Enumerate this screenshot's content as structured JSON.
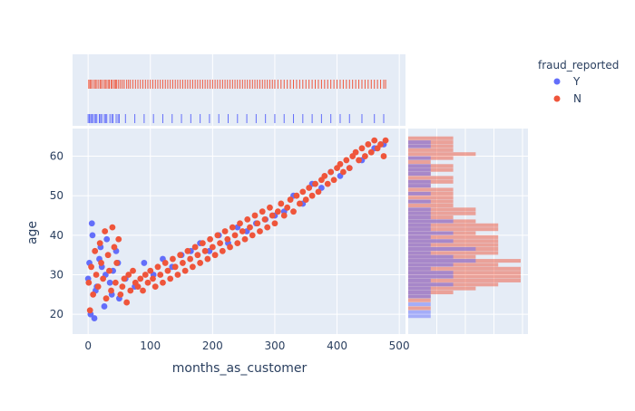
{
  "chart_data": {
    "type": "scatter",
    "title": "",
    "xlabel": "months_as_customer",
    "ylabel": "age",
    "xlim": [
      -25,
      510
    ],
    "ylim": [
      15,
      67
    ],
    "x_ticks": [
      0,
      100,
      200,
      300,
      400,
      500
    ],
    "y_ticks": [
      20,
      30,
      40,
      50,
      60
    ],
    "grid": true,
    "marginal_x": "rug",
    "marginal_y": "histogram",
    "legend": {
      "title": "fraud_reported",
      "position": "top-right",
      "entries": [
        {
          "name": "Y",
          "color": "#636efa"
        },
        {
          "name": "N",
          "color": "#ef553b"
        }
      ]
    },
    "series": [
      {
        "name": "Y",
        "color": "#636efa",
        "x": [
          0,
          2,
          4,
          7,
          10,
          14,
          18,
          22,
          26,
          30,
          35,
          40,
          45,
          50,
          6,
          12,
          20,
          28,
          38,
          48,
          60,
          75,
          90,
          105,
          120,
          135,
          150,
          165,
          180,
          195,
          210,
          225,
          240,
          255,
          270,
          285,
          300,
          315,
          330,
          345,
          360,
          375,
          390,
          405,
          420,
          440,
          460,
          475
        ],
        "y": [
          29,
          33,
          20,
          40,
          19,
          27,
          34,
          32,
          22,
          39,
          28,
          31,
          36,
          24,
          43,
          26,
          37,
          30,
          25,
          33,
          29,
          27,
          33,
          30,
          34,
          32,
          35,
          36,
          38,
          36,
          40,
          38,
          42,
          41,
          43,
          44,
          45,
          46,
          50,
          48,
          53,
          52,
          56,
          55,
          57,
          59,
          62,
          63
        ]
      },
      {
        "name": "N",
        "color": "#ef553b",
        "x": [
          1,
          3,
          5,
          8,
          11,
          13,
          16,
          19,
          21,
          24,
          27,
          29,
          32,
          34,
          37,
          39,
          42,
          44,
          46,
          49,
          52,
          55,
          58,
          62,
          65,
          68,
          72,
          76,
          80,
          84,
          88,
          92,
          96,
          100,
          104,
          108,
          112,
          116,
          120,
          124,
          128,
          132,
          136,
          140,
          144,
          148,
          152,
          156,
          160,
          164,
          168,
          172,
          176,
          180,
          184,
          188,
          192,
          196,
          200,
          204,
          208,
          212,
          216,
          220,
          224,
          228,
          232,
          236,
          240,
          244,
          248,
          252,
          256,
          260,
          264,
          268,
          272,
          276,
          280,
          284,
          288,
          292,
          296,
          300,
          305,
          310,
          315,
          320,
          325,
          330,
          335,
          340,
          345,
          350,
          355,
          360,
          365,
          370,
          375,
          380,
          385,
          390,
          395,
          400,
          405,
          410,
          415,
          420,
          425,
          430,
          435,
          440,
          445,
          450,
          455,
          460,
          465,
          470,
          475,
          478
        ],
        "y": [
          28,
          21,
          32,
          25,
          36,
          30,
          27,
          38,
          33,
          29,
          41,
          24,
          35,
          31,
          26,
          42,
          37,
          28,
          33,
          39,
          25,
          27,
          29,
          23,
          30,
          26,
          31,
          28,
          27,
          29,
          26,
          30,
          28,
          31,
          29,
          27,
          32,
          30,
          28,
          33,
          31,
          29,
          34,
          32,
          30,
          35,
          33,
          31,
          36,
          34,
          32,
          37,
          35,
          33,
          38,
          36,
          34,
          39,
          37,
          35,
          40,
          38,
          36,
          41,
          39,
          37,
          42,
          40,
          38,
          43,
          41,
          39,
          44,
          42,
          40,
          45,
          43,
          41,
          46,
          44,
          42,
          47,
          45,
          43,
          46,
          48,
          45,
          47,
          49,
          46,
          50,
          48,
          51,
          49,
          52,
          50,
          53,
          51,
          54,
          55,
          53,
          56,
          54,
          57,
          58,
          56,
          59,
          57,
          60,
          61,
          59,
          62,
          60,
          63,
          61,
          64,
          62,
          63,
          60,
          64
        ]
      }
    ]
  }
}
